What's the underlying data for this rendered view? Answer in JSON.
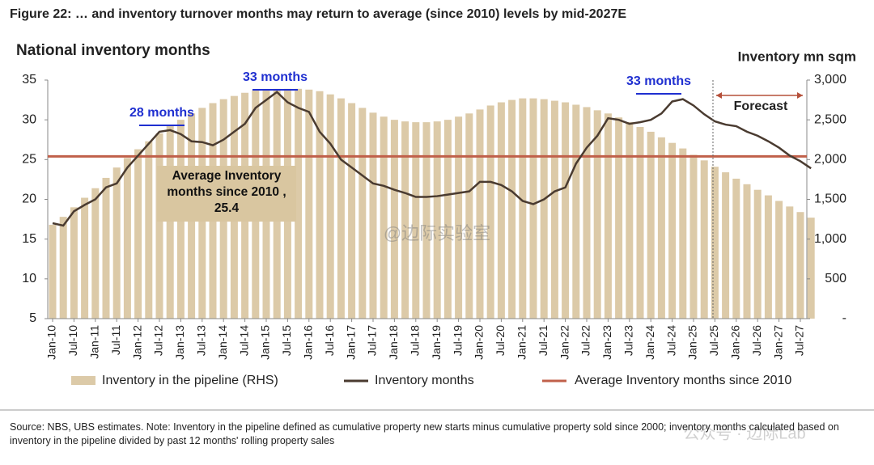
{
  "figure_title": "Figure 22: … and inventory turnover months may return to average (since 2010) levels by mid-2027E",
  "source": "Source: NBS, UBS estimates. Note: Inventory in the pipeline defined as cumulative property new starts minus cumulative property sold since 2000; inventory months calculated based on inventory in the pipeline divided by past 12 months' rolling property sales",
  "watermarks": [
    "@边际实验室",
    "公众号 · 边际Lab"
  ],
  "chart_data": {
    "type": "bar-line",
    "title": "National inventory months",
    "y2_label": "Inventory mn sqm",
    "categories": [
      "Jan-10",
      null,
      "Jul-10",
      null,
      "Jan-11",
      null,
      "Jul-11",
      null,
      "Jan-12",
      null,
      "Jul-12",
      null,
      "Jan-13",
      null,
      "Jul-13",
      null,
      "Jan-14",
      null,
      "Jul-14",
      null,
      "Jan-15",
      null,
      "Jul-15",
      null,
      "Jan-16",
      null,
      "Jul-16",
      null,
      "Jan-17",
      null,
      "Jul-17",
      null,
      "Jan-18",
      null,
      "Jul-18",
      null,
      "Jan-19",
      null,
      "Jul-19",
      null,
      "Jan-20",
      null,
      "Jul-20",
      null,
      "Jan-21",
      null,
      "Jul-21",
      null,
      "Jan-22",
      null,
      "Jul-22",
      null,
      "Jan-23",
      null,
      "Jul-23",
      null,
      "Jan-24",
      null,
      "Jul-24",
      null,
      "Jan-25",
      null,
      "Jul-25",
      null,
      "Jan-26",
      null,
      "Jul-26",
      null,
      "Jan-27",
      null,
      "Jul-27",
      null
    ],
    "series": [
      {
        "name": "Inventory in the pipeline (RHS)",
        "color": "#dccaa8",
        "axis": "y2",
        "kind": "bar",
        "values": [
          1180,
          1280,
          1400,
          1520,
          1640,
          1770,
          1900,
          2020,
          2130,
          2230,
          2330,
          2420,
          2500,
          2580,
          2650,
          2710,
          2760,
          2800,
          2840,
          2870,
          2880,
          2890,
          2890,
          2890,
          2880,
          2860,
          2820,
          2770,
          2710,
          2650,
          2590,
          2540,
          2500,
          2480,
          2470,
          2470,
          2480,
          2500,
          2540,
          2580,
          2630,
          2680,
          2720,
          2750,
          2770,
          2770,
          2760,
          2740,
          2720,
          2690,
          2660,
          2620,
          2580,
          2530,
          2470,
          2410,
          2350,
          2280,
          2210,
          2140,
          2060,
          1990,
          1910,
          1840,
          1760,
          1690,
          1620,
          1550,
          1480,
          1410,
          1340,
          1270
        ]
      },
      {
        "name": "Inventory months",
        "color": "#4a3b30",
        "kind": "line",
        "values": [
          17,
          16.7,
          18.5,
          19.3,
          20,
          21.5,
          22,
          24,
          25.5,
          27,
          28.5,
          28.7,
          28.2,
          27.3,
          27.2,
          26.8,
          27.5,
          28.5,
          29.5,
          31.5,
          32.5,
          33.5,
          32.2,
          31.5,
          31,
          28.5,
          27,
          25,
          24,
          23,
          22,
          21.7,
          21.2,
          20.8,
          20.3,
          20.3,
          20.4,
          20.6,
          20.8,
          21,
          22.2,
          22.2,
          21.8,
          21,
          19.8,
          19.4,
          20,
          21,
          21.5,
          24.5,
          26.5,
          28,
          30.2,
          30,
          29.5,
          29.7,
          30,
          30.8,
          32.3,
          32.6,
          31.8,
          30.7,
          29.8,
          29.4,
          29.2,
          28.5,
          28,
          27.3,
          26.5,
          25.5,
          24.8,
          23.9
        ]
      }
    ],
    "reference_lines": [
      {
        "name": "Average Inventory months since 2010",
        "value": 25.4,
        "color": "#c0604a"
      }
    ],
    "annotations": [
      "28 months",
      "33 months",
      "33 months",
      "Forecast",
      "Average Inventory months since 2010 , 25.4"
    ],
    "ylim": [
      5,
      35
    ],
    "yticks": [
      5,
      10,
      15,
      20,
      25,
      30,
      35
    ],
    "y2lim": [
      0,
      3000
    ],
    "y2ticks": [
      {
        "value": 0,
        "label": "-"
      },
      500,
      {
        "value": 1000,
        "label": "1,000"
      },
      {
        "value": 1500,
        "label": "1,500"
      },
      {
        "value": 2000,
        "label": "2,000"
      },
      {
        "value": 2500,
        "label": "2,500"
      },
      {
        "value": 3000,
        "label": "3,000"
      }
    ]
  }
}
